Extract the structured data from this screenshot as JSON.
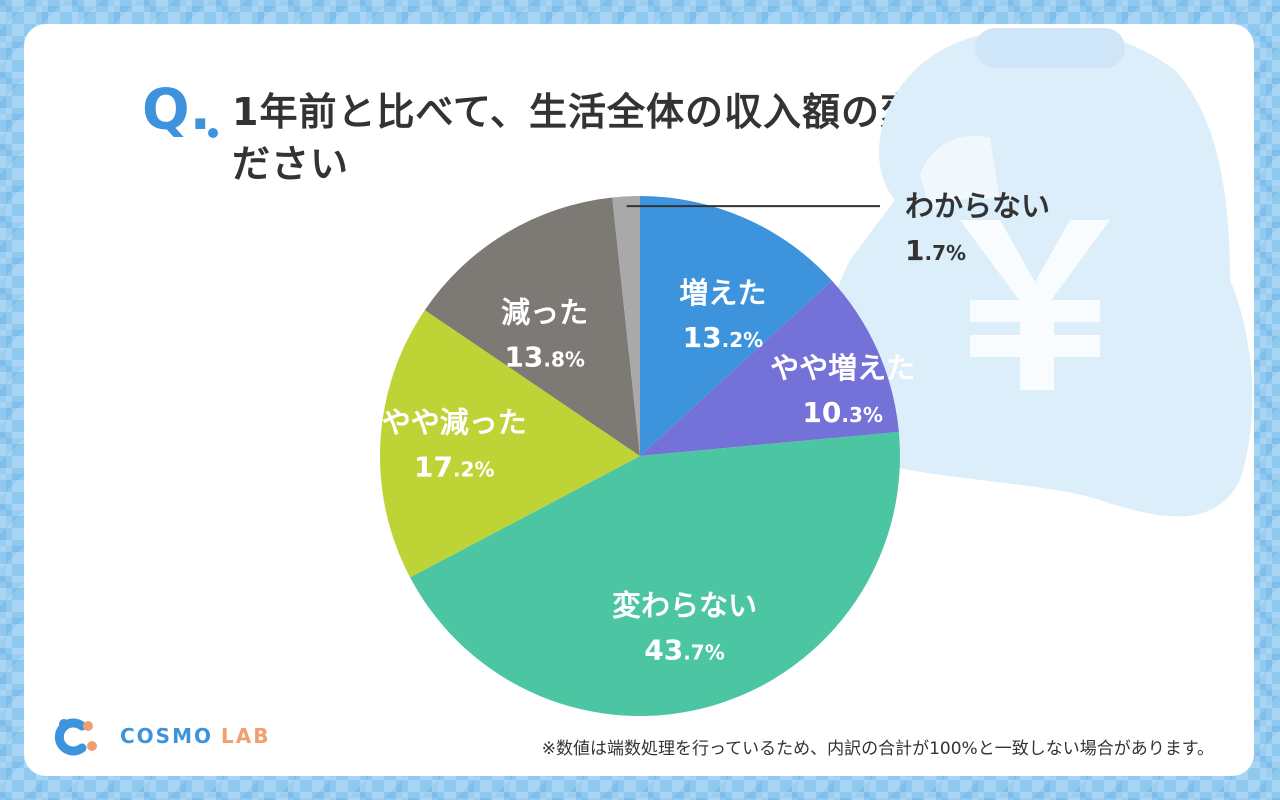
{
  "question": {
    "prefix": "Q.",
    "text": "1年前と比べて、生活全体の収入額の変化を教えてください"
  },
  "chart_data": {
    "type": "pie",
    "start_angle_deg": 0,
    "direction": "clockwise",
    "slices": [
      {
        "label": "増えた",
        "value": 13.2,
        "value_main": "13",
        "value_dec": ".2%",
        "color": "#3d94dd",
        "label_position": "inside"
      },
      {
        "label": "やや増えた",
        "value": 10.3,
        "value_main": "10",
        "value_dec": ".3%",
        "color": "#7471d8",
        "label_position": "inside"
      },
      {
        "label": "変わらない",
        "value": 43.7,
        "value_main": "43",
        "value_dec": ".7%",
        "color": "#4cc5a2",
        "label_position": "inside"
      },
      {
        "label": "やや減った",
        "value": 17.2,
        "value_main": "17",
        "value_dec": ".2%",
        "color": "#bed336",
        "label_position": "inside"
      },
      {
        "label": "減った",
        "value": 13.8,
        "value_main": "13",
        "value_dec": ".8%",
        "color": "#7d7a76",
        "label_position": "inside"
      },
      {
        "label": "わからない",
        "value": 1.7,
        "value_main": "1",
        "value_dec": ".7%",
        "color": "#a9a9a9",
        "label_position": "outside"
      }
    ]
  },
  "brand": {
    "name_part1": "COSMO",
    "name_part2": "LAB"
  },
  "footnote": "※数値は端数処理を行っているため、内訳の合計が100%と一致しない場合があります。",
  "background_icon": "coin-purse-yen-icon"
}
